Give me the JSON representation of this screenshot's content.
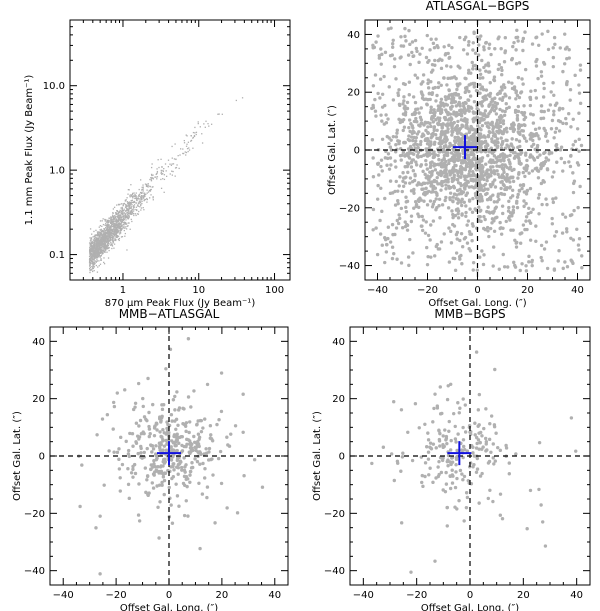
{
  "chart_data": [
    {
      "id": "p1",
      "type": "scatter",
      "title": "",
      "xlabel": "870 μm Peak Flux (Jy Beam⁻¹)",
      "ylabel": "1.1 mm Peak Flux (Jy Beam⁻¹)",
      "xscale": "log",
      "yscale": "log",
      "xlim": [
        0.2,
        160
      ],
      "ylim": [
        0.05,
        60
      ],
      "xticks": [
        1,
        10,
        100
      ],
      "xtick_labels": [
        "1",
        "10",
        "100"
      ],
      "yticks": [
        0.1,
        1,
        10
      ],
      "ytick_labels": [
        "0.1",
        "1.0",
        "10.0"
      ],
      "marker_color": "#b0b0b0",
      "point_count": 1800,
      "relation": "log10(y) ≈ 1.0·log10(x) − 0.55 (tight correlation)",
      "sample_points": [
        [
          0.3,
          0.08
        ],
        [
          0.5,
          0.15
        ],
        [
          0.8,
          0.25
        ],
        [
          1.0,
          0.3
        ],
        [
          2.0,
          0.6
        ],
        [
          5.0,
          1.5
        ],
        [
          10,
          3.0
        ],
        [
          20,
          7.0
        ],
        [
          40,
          15
        ],
        [
          55,
          20
        ]
      ],
      "zero_lines": false,
      "median_offset": null
    },
    {
      "id": "p2",
      "type": "scatter",
      "title": "ATLASGAL−BGPS",
      "xlabel": "Offset Gal. Long. (″)",
      "ylabel": "Offset Gal. Lat. (″)",
      "xscale": "linear",
      "yscale": "linear",
      "xlim": [
        -45,
        45
      ],
      "ylim": [
        -45,
        45
      ],
      "xticks": [
        -40,
        -20,
        0,
        20,
        40
      ],
      "xtick_labels": [
        "−40",
        "−20",
        "0",
        "20",
        "40"
      ],
      "yticks": [
        -40,
        -20,
        0,
        20,
        40
      ],
      "ytick_labels": [
        "−40",
        "−20",
        "0",
        "20",
        "40"
      ],
      "marker_color": "#b0b0b0",
      "point_count": 2200,
      "spread": 14,
      "zero_lines": true,
      "median_offset": [
        -5,
        1
      ]
    },
    {
      "id": "p3",
      "type": "scatter",
      "title": "MMB−ATLASGAL",
      "xlabel": "Offset Gal. Long. (″)",
      "ylabel": "Offset Gal. Lat. (″)",
      "xscale": "linear",
      "yscale": "linear",
      "xlim": [
        -45,
        45
      ],
      "ylim": [
        -45,
        45
      ],
      "xticks": [
        -40,
        -20,
        0,
        20,
        40
      ],
      "xtick_labels": [
        "−40",
        "−20",
        "0",
        "20",
        "40"
      ],
      "yticks": [
        -40,
        -20,
        0,
        20,
        40
      ],
      "ytick_labels": [
        "−40",
        "−20",
        "0",
        "20",
        "40"
      ],
      "marker_color": "#b0b0b0",
      "point_count": 420,
      "spread": 8,
      "zero_lines": true,
      "median_offset": [
        0,
        1
      ]
    },
    {
      "id": "p4",
      "type": "scatter",
      "title": "MMB−BGPS",
      "xlabel": "Offset Gal. Long. (″)",
      "ylabel": "Offset Gal. Lat. (″)",
      "xscale": "linear",
      "yscale": "linear",
      "xlim": [
        -45,
        45
      ],
      "ylim": [
        -45,
        45
      ],
      "xticks": [
        -40,
        -20,
        0,
        20,
        40
      ],
      "xtick_labels": [
        "−40",
        "−20",
        "0",
        "20",
        "40"
      ],
      "yticks": [
        -40,
        -20,
        0,
        20,
        40
      ],
      "ytick_labels": [
        "−40",
        "−20",
        "0",
        "20",
        "40"
      ],
      "marker_color": "#b0b0b0",
      "point_count": 230,
      "spread": 9,
      "zero_lines": true,
      "median_offset": [
        -4,
        1
      ]
    }
  ],
  "colors": {
    "points": "#b0b0b0",
    "median_cross": "#1010e0",
    "axes": "#000000"
  }
}
